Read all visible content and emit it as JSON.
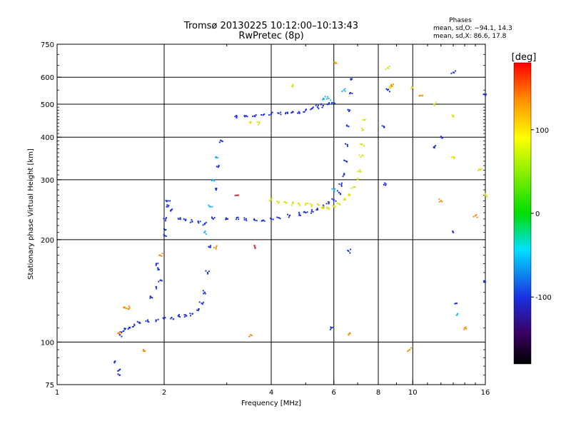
{
  "chart_data": {
    "type": "scatter",
    "title": "Tromsø 20130225 10:12:00–10:13:43",
    "subtitle": "RwPretec (8p)",
    "xlabel": "Frequency [MHz]",
    "ylabel": "Stationary phase Virtual Height [km]",
    "xscale": "log",
    "yscale": "log",
    "xlim": [
      1,
      16
    ],
    "ylim": [
      75,
      750
    ],
    "xticks": [
      1,
      2,
      4,
      6,
      8,
      10,
      16
    ],
    "yticks": [
      75,
      100,
      200,
      300,
      400,
      500,
      600,
      750
    ],
    "grid": true,
    "phase_info": {
      "title": "Phases",
      "line_o": "mean, sd,O: −94.1, 14.3",
      "line_x": "mean, sd,X:  86.6, 17.8"
    },
    "colorbar": {
      "label": "[deg]",
      "range": [
        -180,
        180
      ],
      "ticks": [
        100,
        0,
        -100
      ]
    },
    "series": [
      {
        "phase": -100,
        "color": "#1a2fe0",
        "points": [
          [
            1.5,
            80
          ],
          [
            1.5,
            83
          ],
          [
            1.45,
            87
          ],
          [
            1.5,
            105
          ],
          [
            1.52,
            107
          ],
          [
            1.55,
            109
          ],
          [
            1.6,
            110
          ],
          [
            1.65,
            112
          ],
          [
            1.7,
            114
          ],
          [
            1.8,
            115
          ],
          [
            1.9,
            116
          ],
          [
            2.0,
            117
          ],
          [
            2.1,
            118
          ],
          [
            2.2,
            119
          ],
          [
            2.3,
            120
          ],
          [
            2.4,
            121
          ],
          [
            2.5,
            125
          ],
          [
            2.55,
            130
          ],
          [
            2.6,
            140
          ],
          [
            2.65,
            160
          ],
          [
            2.7,
            190
          ],
          [
            2.75,
            230
          ],
          [
            2.8,
            280
          ],
          [
            2.85,
            330
          ],
          [
            2.9,
            390
          ],
          [
            1.85,
            135
          ],
          [
            1.9,
            145
          ],
          [
            1.95,
            152
          ],
          [
            1.9,
            170
          ],
          [
            1.92,
            165
          ],
          [
            2.0,
            205
          ],
          [
            2.0,
            215
          ],
          [
            2.02,
            230
          ],
          [
            2.05,
            250
          ],
          [
            2.05,
            260
          ],
          [
            2.1,
            245
          ],
          [
            2.2,
            230
          ],
          [
            2.3,
            228
          ],
          [
            2.4,
            226
          ],
          [
            2.5,
            224
          ],
          [
            2.6,
            222
          ],
          [
            3.0,
            230
          ],
          [
            3.2,
            232
          ],
          [
            3.4,
            230
          ],
          [
            3.6,
            228
          ],
          [
            3.8,
            228
          ],
          [
            4.0,
            230
          ],
          [
            4.2,
            232
          ],
          [
            4.5,
            235
          ],
          [
            4.8,
            238
          ],
          [
            5.0,
            240
          ],
          [
            5.2,
            242
          ],
          [
            5.4,
            245
          ],
          [
            5.6,
            250
          ],
          [
            5.8,
            255
          ],
          [
            6.0,
            262
          ],
          [
            6.2,
            275
          ],
          [
            6.3,
            290
          ],
          [
            6.4,
            310
          ],
          [
            6.5,
            340
          ],
          [
            6.55,
            380
          ],
          [
            6.6,
            430
          ],
          [
            6.65,
            480
          ],
          [
            6.68,
            540
          ],
          [
            6.7,
            590
          ],
          [
            3.2,
            460
          ],
          [
            3.4,
            462
          ],
          [
            3.6,
            460
          ],
          [
            3.8,
            465
          ],
          [
            4.0,
            468
          ],
          [
            4.2,
            470
          ],
          [
            4.4,
            472
          ],
          [
            4.6,
            475
          ],
          [
            4.8,
            470
          ],
          [
            5.0,
            480
          ],
          [
            5.2,
            485
          ],
          [
            5.4,
            490
          ],
          [
            5.6,
            495
          ],
          [
            5.8,
            500
          ],
          [
            6.0,
            505
          ],
          [
            8.3,
            290
          ],
          [
            8.3,
            430
          ],
          [
            8.5,
            550
          ],
          [
            5.9,
            110
          ],
          [
            6.6,
            185
          ],
          [
            11.5,
            375
          ],
          [
            12.0,
            400
          ],
          [
            13.0,
            620
          ],
          [
            13.0,
            210
          ],
          [
            16.0,
            150
          ],
          [
            16.0,
            530
          ],
          [
            13.3,
            130
          ]
        ]
      },
      {
        "phase": -60,
        "color": "#1cb4ff",
        "points": [
          [
            2.6,
            210
          ],
          [
            2.7,
            250
          ],
          [
            2.75,
            300
          ],
          [
            2.8,
            350
          ],
          [
            5.6,
            520
          ],
          [
            5.8,
            520
          ],
          [
            6.0,
            280
          ],
          [
            6.4,
            550
          ],
          [
            13.3,
            120
          ]
        ]
      },
      {
        "phase": 100,
        "color": "#e0e010",
        "points": [
          [
            4.0,
            262
          ],
          [
            4.2,
            258
          ],
          [
            4.4,
            256
          ],
          [
            4.6,
            255
          ],
          [
            4.8,
            254
          ],
          [
            5.0,
            253
          ],
          [
            5.2,
            253
          ],
          [
            5.4,
            254
          ],
          [
            5.6,
            250
          ],
          [
            5.8,
            248
          ],
          [
            6.0,
            250
          ],
          [
            6.2,
            255
          ],
          [
            6.4,
            262
          ],
          [
            6.6,
            270
          ],
          [
            6.8,
            285
          ],
          [
            7.0,
            300
          ],
          [
            7.1,
            320
          ],
          [
            7.15,
            350
          ],
          [
            7.2,
            380
          ],
          [
            7.25,
            420
          ],
          [
            7.3,
            450
          ],
          [
            3.5,
            440
          ],
          [
            3.7,
            440
          ],
          [
            4.6,
            570
          ],
          [
            8.5,
            640
          ],
          [
            8.6,
            560
          ],
          [
            10.0,
            560
          ],
          [
            11.5,
            500
          ],
          [
            13.0,
            460
          ],
          [
            13.0,
            350
          ],
          [
            15.5,
            320
          ],
          [
            16.0,
            270
          ]
        ]
      },
      {
        "phase": 150,
        "color": "#ff8a00",
        "points": [
          [
            1.5,
            107
          ],
          [
            1.55,
            126
          ],
          [
            1.6,
            126
          ],
          [
            1.75,
            95
          ],
          [
            1.95,
            180
          ],
          [
            2.8,
            190
          ],
          [
            3.5,
            105
          ],
          [
            6.1,
            660
          ],
          [
            6.6,
            105
          ],
          [
            8.7,
            570
          ],
          [
            10.5,
            530
          ],
          [
            9.8,
            95
          ],
          [
            12.0,
            260
          ],
          [
            14.0,
            110
          ],
          [
            15.0,
            235
          ]
        ]
      },
      {
        "phase": 170,
        "color": "#e02020",
        "points": [
          [
            3.2,
            270
          ],
          [
            3.6,
            190
          ]
        ]
      }
    ]
  }
}
